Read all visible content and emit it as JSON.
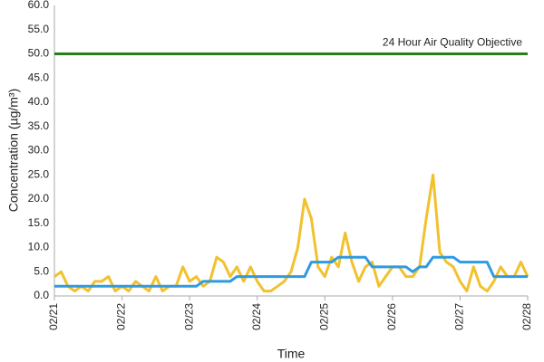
{
  "chart_data": {
    "type": "line",
    "y_label": "Concentration (µg/m³)",
    "x_label": "Time",
    "x": [
      0,
      0.1,
      0.2,
      0.3,
      0.4,
      0.5,
      0.6,
      0.7,
      0.8,
      0.9,
      1,
      1.1,
      1.2,
      1.3,
      1.4,
      1.5,
      1.6,
      1.7,
      1.8,
      1.9,
      2,
      2.1,
      2.2,
      2.3,
      2.4,
      2.5,
      2.6,
      2.7,
      2.8,
      2.9,
      3,
      3.1,
      3.2,
      3.3,
      3.4,
      3.5,
      3.6,
      3.7,
      3.8,
      3.9,
      4,
      4.1,
      4.2,
      4.3,
      4.4,
      4.5,
      4.6,
      4.7,
      4.8,
      4.9,
      5,
      5.1,
      5.2,
      5.3,
      5.4,
      5.5,
      5.6,
      5.7,
      5.8,
      5.9,
      6,
      6.1,
      6.2,
      6.3,
      6.4,
      6.5,
      6.6,
      6.7,
      6.8,
      6.9,
      7
    ],
    "series": [
      {
        "color": "#f2c12e",
        "values": [
          4,
          5,
          2,
          1,
          2,
          1,
          3,
          3,
          4,
          1,
          2,
          1,
          3,
          2,
          1,
          4,
          1,
          2,
          2,
          6,
          3,
          4,
          2,
          3,
          8,
          7,
          4,
          6,
          3,
          6,
          3,
          1,
          1,
          2,
          3,
          5,
          10,
          20,
          16,
          6,
          4,
          8,
          6,
          13,
          7,
          3,
          6,
          7,
          2,
          4,
          6,
          6,
          4,
          4,
          6,
          16,
          25,
          9,
          7,
          6,
          3,
          1,
          6,
          2,
          1,
          3,
          6,
          4,
          4,
          7,
          4
        ]
      },
      {
        "color": "#2e9be0",
        "values": [
          2,
          2,
          2,
          2,
          2,
          2,
          2,
          2,
          2,
          2,
          2,
          2,
          2,
          2,
          2,
          2,
          2,
          2,
          2,
          2,
          2,
          2,
          3,
          3,
          3,
          3,
          3,
          4,
          4,
          4,
          4,
          4,
          4,
          4,
          4,
          4,
          4,
          4,
          7,
          7,
          7,
          7,
          8,
          8,
          8,
          8,
          8,
          6,
          6,
          6,
          6,
          6,
          6,
          5,
          6,
          6,
          8,
          8,
          8,
          8,
          7,
          7,
          7,
          7,
          7,
          4,
          4,
          4,
          4,
          4,
          4
        ]
      }
    ],
    "reference_lines": [
      {
        "value": 50,
        "label": "24 Hour Air Quality Objective",
        "color": "#2a7d1c"
      }
    ],
    "xlim": [
      0,
      7
    ],
    "xticks": [
      {
        "value": 0,
        "label": "02/21"
      },
      {
        "value": 1,
        "label": "02/22"
      },
      {
        "value": 2,
        "label": "02/23"
      },
      {
        "value": 3,
        "label": "02/24"
      },
      {
        "value": 4,
        "label": "02/25"
      },
      {
        "value": 5,
        "label": "02/26"
      },
      {
        "value": 6,
        "label": "02/27"
      },
      {
        "value": 7,
        "label": "02/28"
      }
    ],
    "ylim": [
      0,
      60
    ],
    "yticks": [
      {
        "value": 0,
        "label": "0.0"
      },
      {
        "value": 5,
        "label": "5.0"
      },
      {
        "value": 10,
        "label": "10.0"
      },
      {
        "value": 15,
        "label": "15.0"
      },
      {
        "value": 20,
        "label": "20.0"
      },
      {
        "value": 25,
        "label": "25.0"
      },
      {
        "value": 30,
        "label": "30.0"
      },
      {
        "value": 35,
        "label": "35.0"
      },
      {
        "value": 40,
        "label": "40.0"
      },
      {
        "value": 45,
        "label": "45.0"
      },
      {
        "value": 50,
        "label": "50.0"
      },
      {
        "value": 55,
        "label": "55.0"
      },
      {
        "value": 60,
        "label": "60.0"
      }
    ],
    "grid": false
  }
}
